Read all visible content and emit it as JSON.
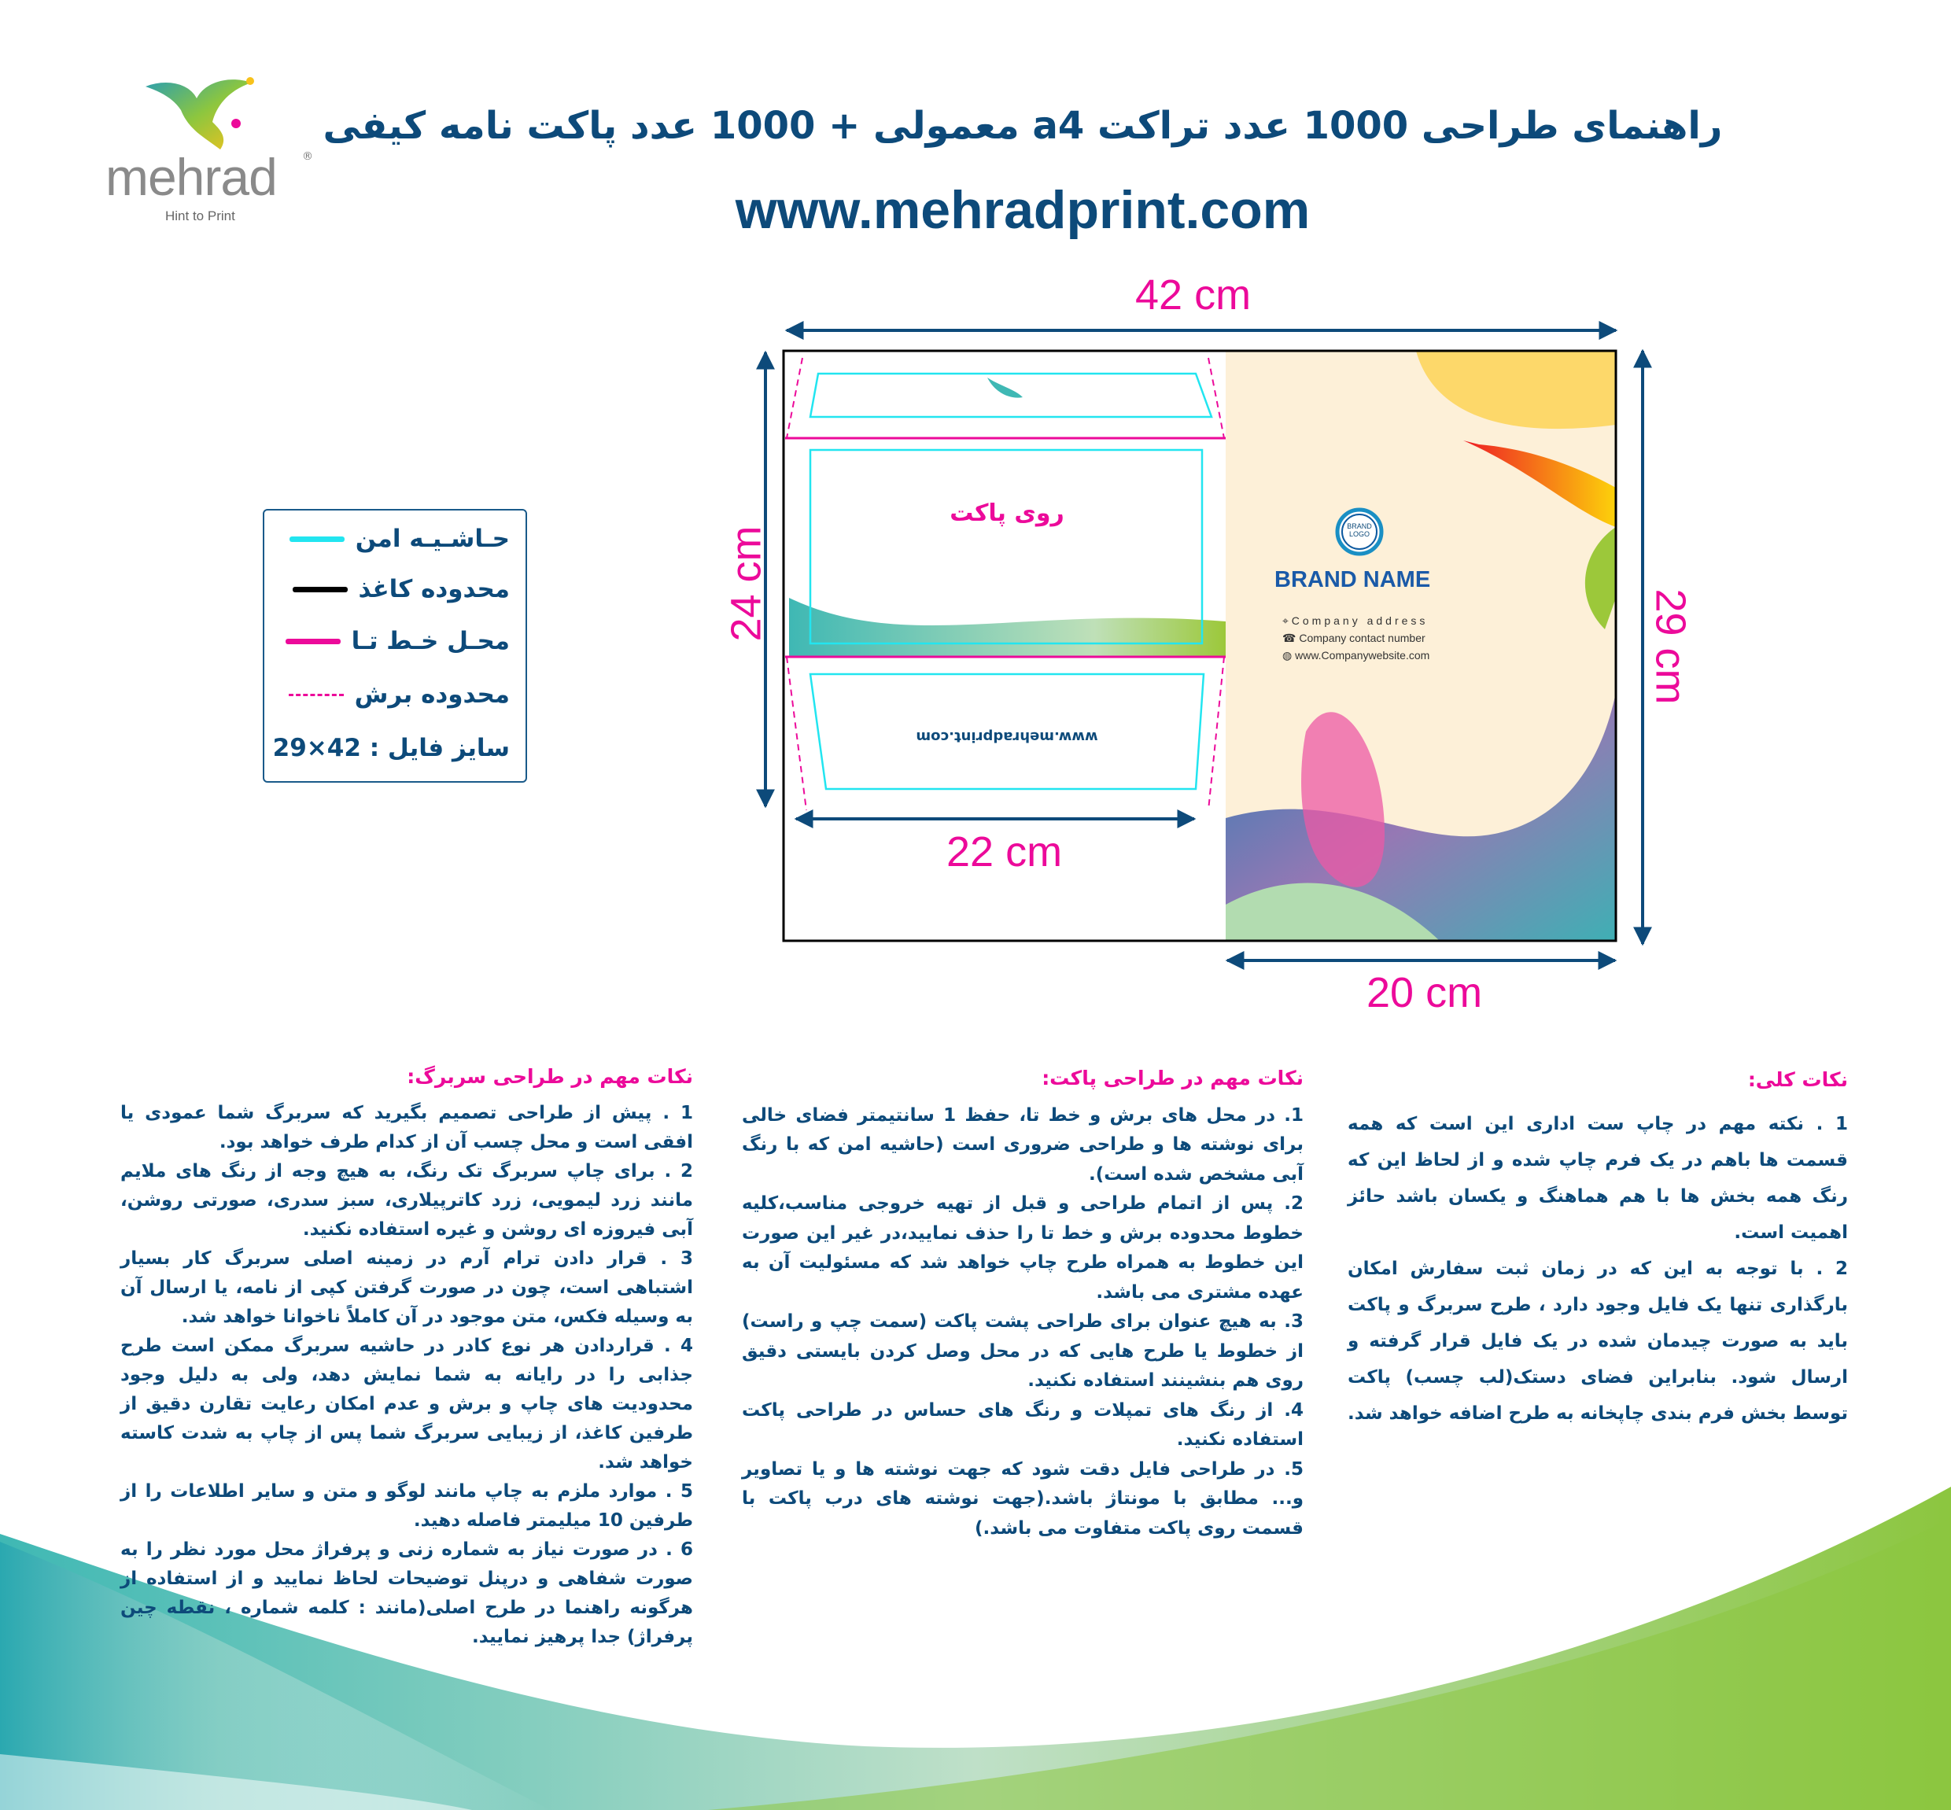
{
  "logo": {
    "word": "mehrad",
    "registered": "®",
    "tagline": "Hint to Print"
  },
  "header": {
    "title": "راهنمای طراحی 1000 عدد تراکت a4 معمولی + 1000 عدد پاکت نامه کیفی",
    "url": "www.mehradprint.com"
  },
  "dimensions": {
    "total_width": "42 cm",
    "total_height": "29 cm",
    "envelope_height": "24 cm",
    "envelope_width": "22 cm",
    "letterhead_width": "20 cm"
  },
  "legend": {
    "items": [
      {
        "label": "حـاشـیـه امن",
        "color": "#22e5f0",
        "style": "solid"
      },
      {
        "label": "محدوده کاغذ",
        "color": "#000000",
        "style": "solid"
      },
      {
        "label": "محـل خـط تـا",
        "color": "#ec0a9a",
        "style": "solid"
      },
      {
        "label": "محدوده برش",
        "color": "#ec0a9a",
        "style": "dashed"
      }
    ],
    "file_size": "سایز فایل : 42×29"
  },
  "envelope": {
    "front_label": "روی پاکت",
    "flap_url": "www.mehradprint.com"
  },
  "letterhead": {
    "logo_line1": "BRAND",
    "logo_line2": "LOGO",
    "brand_name": "BRAND NAME",
    "address": "Company address",
    "phone": "Company contact number",
    "website": "www.Companywebsite.com"
  },
  "notes": {
    "general": {
      "heading": "نکات کلی:",
      "items": [
        "1 . نکته مهم در چاپ ست اداری این است که همه قسمت ها باهم در یک فرم چاپ شده و از لحاظ این که رنگ همه بخش ها با هم هماهنگ و یکسان باشد حائز اهمیت است.",
        "2 . با توجه به این که در زمان ثبت سفارش امکان بارگذاری تنها یک فایل وجود دارد ، طرح سربرگ و پاکت باید به صورت چیدمان شده در یک فایل قرار گرفته و ارسال شود. بنابراین فضای دستک(لب چسب) پاکت توسط بخش فرم بندی چاپخانه به طرح اضافه خواهد شد."
      ]
    },
    "envelope": {
      "heading": "نکات مهم در طراحی پاکت:",
      "items": [
        "1. در محل های برش و خط تا، حفظ 1 سانتیمتر فضای خالی برای نوشته ها و طراحی ضروری است (حاشیه امن که با رنگ آبی مشخص شده است).",
        "2. پس از اتمام طراحی و قبل از تهیه خروجی مناسب،کلیه خطوط محدوده برش و خط تا را حذف نمایید،در غیر این صورت این خطوط به همراه طرح چاپ خواهد شد که مسئولیت آن به عهده مشتری می باشد.",
        "3. به هیچ عنوان برای طراحی پشت پاکت (سمت چپ و راست) از خطوط یا طرح هایی که در محل وصل کردن بایستی دقیق روی هم بنشینند استفاده نکنید.",
        "4. از رنگ های تمپلات و رنگ های حساس در طراحی پاکت استفاده نکنید.",
        "5. در طراحی فایل دقت شود که جهت نوشته ها و یا تصاویر و... مطابق با مونتاژ باشد.(جهت نوشته های درب پاکت با قسمت روی پاکت متفاوت می باشد.)"
      ]
    },
    "letterhead": {
      "heading": "نکات مهم در طراحی سربرگ:",
      "items": [
        "1 . پیش از طراحی تصمیم بگیرید که سربرگ شما عمودی یا افقی است و محل چسب آن از کدام طرف خواهد بود.",
        "2 . برای چاپ سربرگ تک رنگ، به هیچ وجه از رنگ های ملایم مانند زرد لیمویی، زرد کاترپیلاری، سبز سدری، صورتی روشن، آبی فیروزه ای روشن و غیره استفاده نکنید.",
        "3 . قرار دادن ترام آرم در زمینه اصلی سربرگ کار بسیار اشتباهی است، چون در صورت گرفتن کپی از نامه، یا ارسال آن به وسیله فکس، متن موجود در آن کاملاً ناخوانا خواهد شد.",
        "4 . قراردادن هر نوع کادر در حاشیه سربرگ ممکن است طرح جذابی را در رایانه به شما نمایش دهد، ولی به دلیل وجود محدودیت های چاپ و برش و عدم امکان رعایت تقارن دقیق از طرفین کاغذ، از زیبایی سربرگ شما پس از چاپ به شدت کاسته خواهد شد.",
        "5 . موارد ملزم به چاپ مانند لوگو و متن و سایر اطلاعات را از طرفین 10 میلیمتر فاصله دهید.",
        "6 . در صورت نیاز به شماره زنی و پرفراژ محل مورد نظر را به صورت شفاهی و درپنل توضیحات لحاظ نمایید و از استفاده از هرگونه راهنما در طرح اصلی(مانند : کلمه شماره ، نقطه چین پرفراژ) جدا پرهیز نمایید."
      ]
    }
  },
  "colors": {
    "navy": "#0d4a7a",
    "magenta": "#ec0a9a",
    "cyan": "#22e5f0",
    "teal": "#3fb8b4",
    "green": "#9cc83a",
    "cream": "#fdf0d8"
  }
}
